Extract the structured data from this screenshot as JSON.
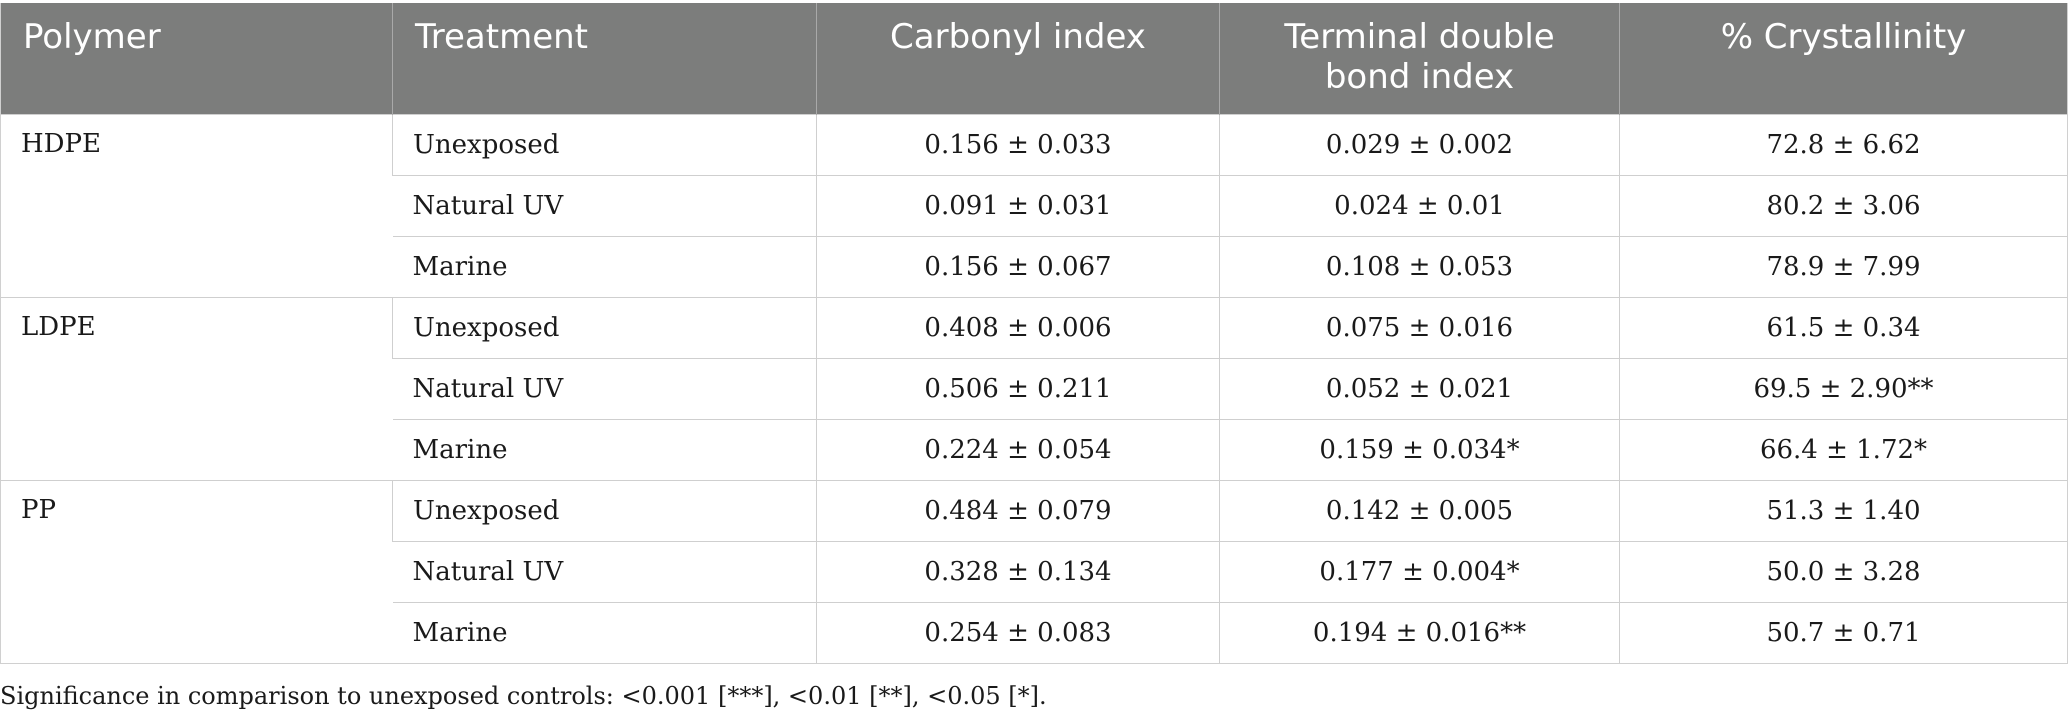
{
  "table": {
    "headers": {
      "polymer": "Polymer",
      "treatment": "Treatment",
      "carbonyl": "Carbonyl index",
      "terminal_line1": "Terminal double",
      "terminal_line2": "bond index",
      "crystallinity": "% Crystallinity"
    },
    "groups": [
      {
        "polymer": "HDPE",
        "rows": [
          {
            "treatment": "Unexposed",
            "carbonyl": "0.156 ± 0.033",
            "terminal": "0.029 ± 0.002",
            "crystallinity": "72.8 ± 6.62"
          },
          {
            "treatment": "Natural UV",
            "carbonyl": "0.091 ± 0.031",
            "terminal": "0.024 ± 0.01",
            "crystallinity": "80.2 ± 3.06"
          },
          {
            "treatment": "Marine",
            "carbonyl": "0.156 ± 0.067",
            "terminal": "0.108 ± 0.053",
            "crystallinity": "78.9 ± 7.99"
          }
        ]
      },
      {
        "polymer": "LDPE",
        "rows": [
          {
            "treatment": "Unexposed",
            "carbonyl": "0.408 ± 0.006",
            "terminal": "0.075 ± 0.016",
            "crystallinity": "61.5 ± 0.34"
          },
          {
            "treatment": "Natural UV",
            "carbonyl": "0.506 ± 0.211",
            "terminal": "0.052 ± 0.021",
            "crystallinity": "69.5 ± 2.90**"
          },
          {
            "treatment": "Marine",
            "carbonyl": "0.224 ± 0.054",
            "terminal": "0.159 ± 0.034*",
            "crystallinity": "66.4 ± 1.72*"
          }
        ]
      },
      {
        "polymer": "PP",
        "rows": [
          {
            "treatment": "Unexposed",
            "carbonyl": "0.484 ± 0.079",
            "terminal": "0.142 ± 0.005",
            "crystallinity": "51.3 ± 1.40"
          },
          {
            "treatment": "Natural UV",
            "carbonyl": "0.328 ± 0.134",
            "terminal": "0.177 ± 0.004*",
            "crystallinity": "50.0 ± 3.28"
          },
          {
            "treatment": "Marine",
            "carbonyl": "0.254 ± 0.083",
            "terminal": "0.194 ± 0.016**",
            "crystallinity": "50.7 ± 0.71"
          }
        ]
      }
    ]
  },
  "footnote": "Significance in comparison to unexposed controls: <0.001 [***], <0.01 [**], <0.05 [*]."
}
